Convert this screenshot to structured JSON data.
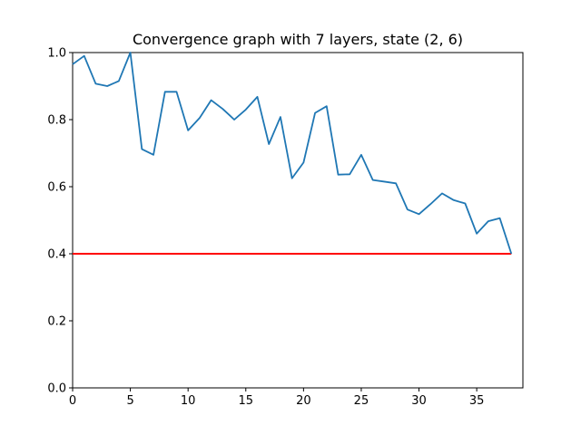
{
  "chart_data": {
    "type": "line",
    "title": "Convergence graph with 7 layers, state (2, 6)",
    "xlabel": "",
    "ylabel": "",
    "xlim": [
      0,
      39
    ],
    "ylim": [
      0,
      1.0
    ],
    "x_ticks": [
      0,
      5,
      10,
      15,
      20,
      25,
      30,
      35
    ],
    "y_ticks": [
      0.0,
      0.2,
      0.4,
      0.6,
      0.8,
      1.0
    ],
    "x_tick_labels": [
      "0",
      "5",
      "10",
      "15",
      "20",
      "25",
      "30",
      "35"
    ],
    "y_tick_labels": [
      "0.0",
      "0.2",
      "0.4",
      "0.6",
      "0.8",
      "1.0"
    ],
    "grid": false,
    "series": [
      {
        "color": "#1f77b4",
        "x": [
          0,
          1,
          2,
          3,
          4,
          5,
          6,
          7,
          8,
          9,
          10,
          11,
          12,
          13,
          14,
          15,
          16,
          17,
          18,
          19,
          20,
          21,
          22,
          23,
          24,
          25,
          26,
          27,
          28,
          29,
          30,
          31,
          32,
          33,
          34,
          35,
          36,
          37,
          38
        ],
        "values": [
          0.965,
          0.99,
          0.907,
          0.9,
          0.915,
          1.0,
          0.712,
          0.695,
          0.883,
          0.883,
          0.768,
          0.805,
          0.858,
          0.832,
          0.8,
          0.83,
          0.868,
          0.727,
          0.808,
          0.625,
          0.672,
          0.82,
          0.84,
          0.636,
          0.637,
          0.695,
          0.62,
          0.615,
          0.61,
          0.532,
          0.518,
          0.548,
          0.58,
          0.56,
          0.55,
          0.46,
          0.497,
          0.506,
          0.4
        ]
      }
    ],
    "reference_line": {
      "y": 0.4,
      "x_from": 0,
      "x_to": 38,
      "color": "#ff0000"
    }
  }
}
